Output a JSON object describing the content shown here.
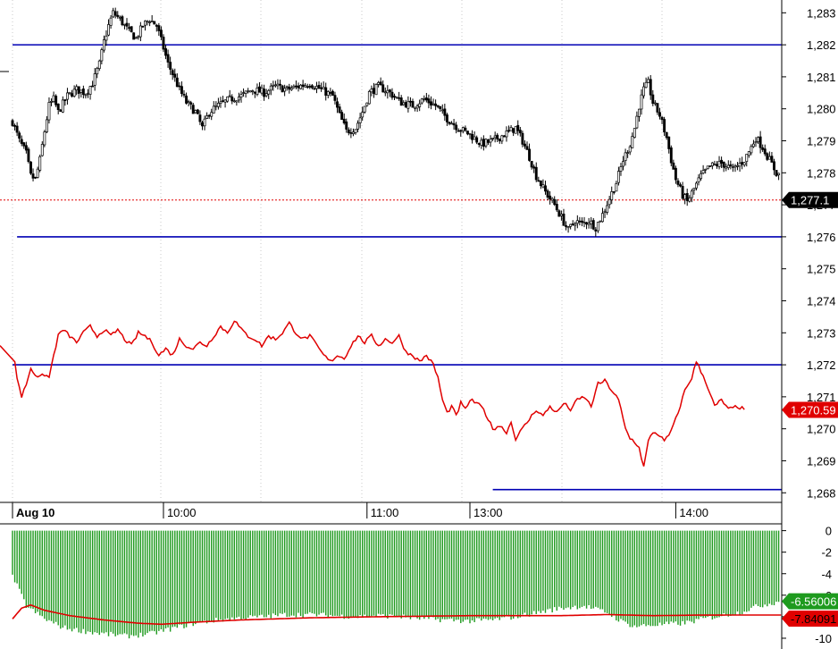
{
  "colors": {
    "candle": "#000000",
    "red_line": "#e00000",
    "level_line": "#0000b4",
    "green_bar": "#1e9a1e",
    "grid": "#c8c8c8",
    "axis": "#000000",
    "last_price_tag": "#000000",
    "red_tag": "#e00000",
    "green_tag": "#1e9a1e"
  },
  "chart_data": [
    {
      "type": "candlestick",
      "panel": "price",
      "y_ticks": [
        "1,283",
        "1,282",
        "1,281",
        "1,280",
        "1,279",
        "1,278",
        "1,277",
        "1,276",
        "1,275",
        "1,274",
        "1,273",
        "1,272",
        "1,271",
        "1,270",
        "1,269",
        "1,268"
      ],
      "ylim": [
        1267.7,
        1283.4
      ],
      "x_ticks": [
        "Aug 10",
        "10:00",
        "11:00",
        "13:00",
        "14:00"
      ],
      "x_tick_index": [
        0,
        66,
        155,
        200,
        290
      ],
      "bar_count": 336,
      "close_anchors": [
        [
          0,
          1279.6
        ],
        [
          3,
          1279.0
        ],
        [
          6,
          1278.6
        ],
        [
          8,
          1277.9
        ],
        [
          10,
          1277.8
        ],
        [
          12,
          1278.4
        ],
        [
          14,
          1279.3
        ],
        [
          16,
          1280.1
        ],
        [
          18,
          1280.3
        ],
        [
          20,
          1279.9
        ],
        [
          24,
          1280.4
        ],
        [
          28,
          1280.6
        ],
        [
          32,
          1280.5
        ],
        [
          35,
          1280.8
        ],
        [
          38,
          1281.4
        ],
        [
          40,
          1282.1
        ],
        [
          42,
          1282.6
        ],
        [
          44,
          1283.0
        ],
        [
          47,
          1282.8
        ],
        [
          50,
          1282.5
        ],
        [
          54,
          1282.2
        ],
        [
          57,
          1282.6
        ],
        [
          60,
          1282.8
        ],
        [
          63,
          1282.6
        ],
        [
          66,
          1281.9
        ],
        [
          68,
          1281.4
        ],
        [
          70,
          1281.1
        ],
        [
          73,
          1280.6
        ],
        [
          76,
          1280.2
        ],
        [
          80,
          1279.9
        ],
        [
          83,
          1279.4
        ],
        [
          86,
          1279.9
        ],
        [
          90,
          1280.1
        ],
        [
          95,
          1280.3
        ],
        [
          100,
          1280.4
        ],
        [
          105,
          1280.6
        ],
        [
          110,
          1280.5
        ],
        [
          115,
          1280.7
        ],
        [
          120,
          1280.6
        ],
        [
          125,
          1280.7
        ],
        [
          130,
          1280.8
        ],
        [
          135,
          1280.6
        ],
        [
          140,
          1280.4
        ],
        [
          143,
          1279.8
        ],
        [
          146,
          1279.3
        ],
        [
          150,
          1279.4
        ],
        [
          153,
          1279.9
        ],
        [
          156,
          1280.5
        ],
        [
          160,
          1280.7
        ],
        [
          165,
          1280.5
        ],
        [
          170,
          1280.2
        ],
        [
          175,
          1280.1
        ],
        [
          180,
          1280.3
        ],
        [
          185,
          1280.1
        ],
        [
          190,
          1279.7
        ],
        [
          195,
          1279.4
        ],
        [
          200,
          1279.2
        ],
        [
          205,
          1278.9
        ],
        [
          210,
          1279.0
        ],
        [
          215,
          1279.2
        ],
        [
          220,
          1279.4
        ],
        [
          223,
          1279.0
        ],
        [
          226,
          1278.5
        ],
        [
          229,
          1277.9
        ],
        [
          233,
          1277.4
        ],
        [
          237,
          1277.0
        ],
        [
          240,
          1276.6
        ],
        [
          243,
          1276.2
        ],
        [
          246,
          1276.5
        ],
        [
          249,
          1276.4
        ],
        [
          252,
          1276.5
        ],
        [
          255,
          1276.3
        ],
        [
          258,
          1276.7
        ],
        [
          261,
          1277.2
        ],
        [
          264,
          1277.7
        ],
        [
          267,
          1278.4
        ],
        [
          270,
          1278.9
        ],
        [
          272,
          1279.4
        ],
        [
          274,
          1280.1
        ],
        [
          276,
          1280.6
        ],
        [
          278,
          1280.8
        ],
        [
          280,
          1280.2
        ],
        [
          283,
          1279.8
        ],
        [
          286,
          1279.1
        ],
        [
          288,
          1278.4
        ],
        [
          290,
          1277.8
        ],
        [
          293,
          1277.3
        ],
        [
          295,
          1277.1
        ],
        [
          298,
          1277.5
        ],
        [
          301,
          1277.9
        ],
        [
          305,
          1278.2
        ],
        [
          310,
          1278.3
        ],
        [
          315,
          1278.1
        ],
        [
          320,
          1278.4
        ],
        [
          323,
          1278.8
        ],
        [
          325,
          1279.1
        ],
        [
          328,
          1278.8
        ],
        [
          331,
          1278.4
        ],
        [
          334,
          1278.0
        ],
        [
          336,
          1277.9
        ]
      ],
      "last_price_label": "1,277.1",
      "last_price": 1277.15,
      "levels": [
        {
          "value": 1282.0,
          "from_index": 0,
          "to_index": 336
        },
        {
          "value": 1276.0,
          "from_index": 2,
          "to_index": 336
        }
      ]
    },
    {
      "type": "line",
      "panel": "price",
      "series": [
        {
          "anchors": [
            [
              0,
              1272.6
            ],
            [
              2,
              1271.6
            ],
            [
              4,
              1271.0
            ],
            [
              6,
              1271.4
            ],
            [
              8,
              1271.9
            ],
            [
              10,
              1271.7
            ],
            [
              12,
              1271.6
            ],
            [
              14,
              1271.7
            ],
            [
              16,
              1271.6
            ],
            [
              18,
              1272.3
            ],
            [
              20,
              1272.9
            ],
            [
              22,
              1273.1
            ],
            [
              25,
              1272.9
            ],
            [
              28,
              1272.7
            ],
            [
              31,
              1273.0
            ],
            [
              34,
              1273.2
            ],
            [
              37,
              1272.9
            ],
            [
              40,
              1273.1
            ],
            [
              43,
              1272.9
            ],
            [
              46,
              1273.1
            ],
            [
              49,
              1272.8
            ],
            [
              52,
              1272.6
            ],
            [
              55,
              1273.0
            ],
            [
              58,
              1272.9
            ],
            [
              61,
              1272.7
            ],
            [
              64,
              1272.3
            ],
            [
              67,
              1272.5
            ],
            [
              70,
              1272.3
            ],
            [
              73,
              1272.8
            ],
            [
              76,
              1272.6
            ],
            [
              79,
              1272.5
            ],
            [
              82,
              1272.7
            ],
            [
              85,
              1272.6
            ],
            [
              88,
              1272.9
            ],
            [
              91,
              1273.2
            ],
            [
              94,
              1273.0
            ],
            [
              97,
              1273.4
            ],
            [
              100,
              1273.1
            ],
            [
              103,
              1272.9
            ],
            [
              106,
              1272.8
            ],
            [
              109,
              1272.6
            ],
            [
              112,
              1272.9
            ],
            [
              115,
              1272.8
            ],
            [
              118,
              1273.0
            ],
            [
              121,
              1273.3
            ],
            [
              124,
              1273.0
            ],
            [
              127,
              1272.8
            ],
            [
              130,
              1272.9
            ],
            [
              133,
              1272.6
            ],
            [
              136,
              1272.3
            ],
            [
              139,
              1272.1
            ],
            [
              142,
              1272.3
            ],
            [
              145,
              1272.2
            ],
            [
              148,
              1272.6
            ],
            [
              151,
              1272.9
            ],
            [
              154,
              1272.7
            ],
            [
              157,
              1272.9
            ],
            [
              160,
              1272.6
            ],
            [
              163,
              1272.8
            ],
            [
              166,
              1272.7
            ],
            [
              169,
              1272.9
            ],
            [
              172,
              1272.4
            ],
            [
              175,
              1272.3
            ],
            [
              178,
              1272.1
            ],
            [
              181,
              1272.3
            ],
            [
              184,
              1272.0
            ],
            [
              186,
              1271.6
            ],
            [
              188,
              1270.9
            ],
            [
              190,
              1270.5
            ],
            [
              192,
              1270.7
            ],
            [
              194,
              1270.4
            ],
            [
              196,
              1270.8
            ],
            [
              198,
              1270.6
            ],
            [
              200,
              1270.9
            ],
            [
              203,
              1270.8
            ],
            [
              206,
              1270.6
            ],
            [
              208,
              1270.3
            ],
            [
              210,
              1270.0
            ],
            [
              213,
              1270.1
            ],
            [
              216,
              1269.9
            ],
            [
              218,
              1270.2
            ],
            [
              220,
              1269.7
            ],
            [
              223,
              1270.0
            ],
            [
              226,
              1270.3
            ],
            [
              229,
              1270.6
            ],
            [
              232,
              1270.4
            ],
            [
              235,
              1270.7
            ],
            [
              238,
              1270.5
            ],
            [
              241,
              1270.8
            ],
            [
              244,
              1270.6
            ],
            [
              247,
              1270.9
            ],
            [
              250,
              1271.0
            ],
            [
              253,
              1270.7
            ],
            [
              256,
              1271.4
            ],
            [
              259,
              1271.5
            ],
            [
              262,
              1271.2
            ],
            [
              265,
              1270.9
            ],
            [
              268,
              1270.0
            ],
            [
              270,
              1269.7
            ],
            [
              272,
              1269.6
            ],
            [
              274,
              1269.4
            ],
            [
              276,
              1268.8
            ],
            [
              278,
              1269.6
            ],
            [
              280,
              1269.9
            ],
            [
              283,
              1269.8
            ],
            [
              285,
              1269.6
            ],
            [
              287,
              1269.8
            ],
            [
              289,
              1270.1
            ],
            [
              291,
              1270.5
            ],
            [
              294,
              1271.2
            ],
            [
              297,
              1271.6
            ],
            [
              299,
              1272.1
            ],
            [
              301,
              1271.8
            ],
            [
              303,
              1271.5
            ],
            [
              305,
              1271.1
            ],
            [
              307,
              1270.7
            ],
            [
              310,
              1270.9
            ],
            [
              313,
              1270.6
            ],
            [
              317,
              1270.7
            ],
            [
              320,
              1270.6
            ]
          ]
        }
      ],
      "last_value_label": "1,270.59",
      "last_value": 1270.59,
      "levels": [
        {
          "value": 1272.0,
          "from_index": 0,
          "to_index": 336
        },
        {
          "value": 1268.1,
          "from_index": 210,
          "to_index": 336
        }
      ]
    },
    {
      "type": "bar",
      "panel": "indicator",
      "y_ticks": [
        "0",
        "-2",
        "-4",
        "-6",
        "-8",
        "-10"
      ],
      "ylim": [
        -11.0,
        0.3
      ],
      "bar_count": 336,
      "green_bar_anchors": [
        [
          0,
          -4.2
        ],
        [
          6,
          -7.0
        ],
        [
          14,
          -8.2
        ],
        [
          22,
          -9.0
        ],
        [
          30,
          -9.3
        ],
        [
          40,
          -9.6
        ],
        [
          50,
          -9.8
        ],
        [
          60,
          -9.6
        ],
        [
          70,
          -9.1
        ],
        [
          80,
          -8.6
        ],
        [
          90,
          -8.3
        ],
        [
          100,
          -8.1
        ],
        [
          110,
          -8.0
        ],
        [
          120,
          -7.8
        ],
        [
          130,
          -7.8
        ],
        [
          140,
          -7.9
        ],
        [
          150,
          -8.0
        ],
        [
          160,
          -7.9
        ],
        [
          170,
          -8.0
        ],
        [
          180,
          -8.2
        ],
        [
          190,
          -8.3
        ],
        [
          200,
          -8.4
        ],
        [
          210,
          -8.3
        ],
        [
          220,
          -8.0
        ],
        [
          230,
          -7.6
        ],
        [
          240,
          -7.2
        ],
        [
          250,
          -7.0
        ],
        [
          260,
          -7.6
        ],
        [
          266,
          -8.4
        ],
        [
          272,
          -8.9
        ],
        [
          278,
          -8.8
        ],
        [
          286,
          -8.7
        ],
        [
          294,
          -8.6
        ],
        [
          302,
          -8.2
        ],
        [
          310,
          -7.9
        ],
        [
          318,
          -7.6
        ],
        [
          326,
          -7.0
        ],
        [
          336,
          -6.56
        ]
      ],
      "red_line_anchors": [
        [
          0,
          -8.2
        ],
        [
          4,
          -7.2
        ],
        [
          8,
          -6.9
        ],
        [
          14,
          -7.4
        ],
        [
          25,
          -7.9
        ],
        [
          40,
          -8.3
        ],
        [
          55,
          -8.6
        ],
        [
          65,
          -8.7
        ],
        [
          80,
          -8.5
        ],
        [
          100,
          -8.3
        ],
        [
          130,
          -8.1
        ],
        [
          160,
          -8.0
        ],
        [
          200,
          -7.9
        ],
        [
          240,
          -7.9
        ],
        [
          260,
          -7.8
        ],
        [
          280,
          -7.9
        ],
        [
          300,
          -7.85
        ],
        [
          336,
          -7.84
        ]
      ],
      "green_value_label": "-6.56006",
      "green_value": -6.56006,
      "red_value_label": "-7.84091",
      "red_value": -7.84091
    }
  ]
}
